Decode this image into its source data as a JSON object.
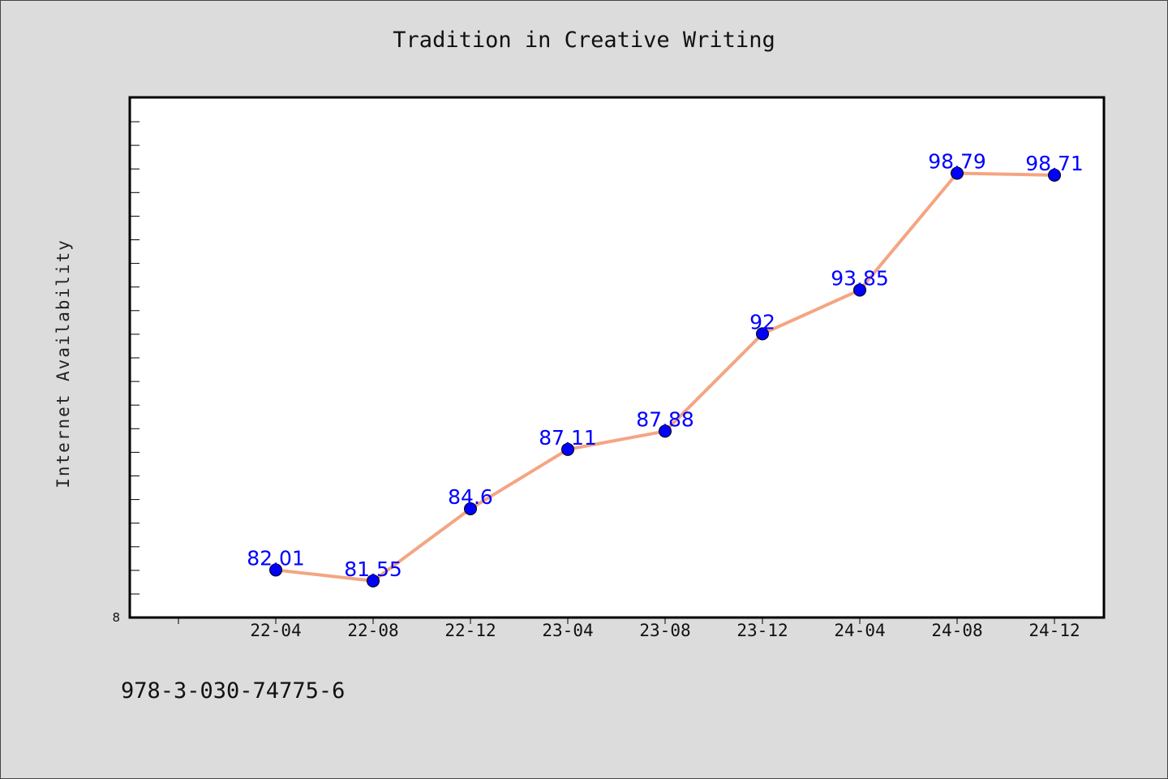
{
  "chart_data": {
    "type": "line",
    "title": "Tradition in Creative Writing",
    "xlabel": "",
    "ylabel": "Internet Availability",
    "categories": [
      "22-04",
      "22-08",
      "22-12",
      "23-04",
      "23-08",
      "23-12",
      "24-04",
      "24-08",
      "24-12"
    ],
    "series": [
      {
        "values": [
          82.01,
          81.55,
          84.6,
          87.11,
          87.88,
          92,
          93.85,
          98.79,
          98.71
        ],
        "color": "#f4a582",
        "marker_color": "#0000ff"
      }
    ],
    "ylim": [
      80,
      102
    ],
    "y_tick_label": "8",
    "grid": false,
    "legend": "none",
    "data_label_color": "#0000ff"
  },
  "footer": {
    "code": "978-3-030-74775-6"
  }
}
